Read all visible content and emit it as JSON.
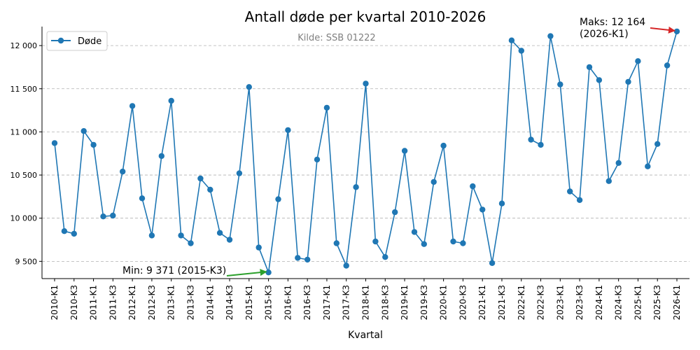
{
  "chart_data": {
    "type": "line",
    "title": "Antall døde per kvartal 2010-2026",
    "subtitle": "Kilde: SSB 01222",
    "xlabel": "Kvartal",
    "ylabel": "",
    "ylim": [
      9300,
      12220
    ],
    "yticks": [
      9500,
      10000,
      10500,
      11000,
      11500,
      12000
    ],
    "ytick_labels": [
      "9 500",
      "10 000",
      "10 500",
      "11 000",
      "11 500",
      "12 000"
    ],
    "grid": "horizontal dashed",
    "legend_position": "top-left",
    "colors": {
      "series": "#1f77b4",
      "min_arrow": "#2ca02c",
      "max_arrow": "#d62728"
    },
    "x_labels_shown": [
      "2010-K1",
      "2010-K3",
      "2011-K1",
      "2011-K3",
      "2012-K1",
      "2012-K3",
      "2013-K1",
      "2013-K3",
      "2014-K1",
      "2014-K3",
      "2015-K1",
      "2015-K3",
      "2016-K1",
      "2016-K3",
      "2017-K1",
      "2017-K3",
      "2018-K1",
      "2018-K3",
      "2019-K1",
      "2019-K3",
      "2020-K1",
      "2020-K3",
      "2021-K1",
      "2021-K3",
      "2022-K1",
      "2022-K3",
      "2023-K1",
      "2023-K3",
      "2024-K1",
      "2024-K3",
      "2025-K1",
      "2025-K3",
      "2026-K1"
    ],
    "series": [
      {
        "name": "Døde",
        "x": [
          "2010-K1",
          "2010-K2",
          "2010-K3",
          "2010-K4",
          "2011-K1",
          "2011-K2",
          "2011-K3",
          "2011-K4",
          "2012-K1",
          "2012-K2",
          "2012-K3",
          "2012-K4",
          "2013-K1",
          "2013-K2",
          "2013-K3",
          "2013-K4",
          "2014-K1",
          "2014-K2",
          "2014-K3",
          "2014-K4",
          "2015-K1",
          "2015-K2",
          "2015-K3",
          "2015-K4",
          "2016-K1",
          "2016-K2",
          "2016-K3",
          "2016-K4",
          "2017-K1",
          "2017-K2",
          "2017-K3",
          "2017-K4",
          "2018-K1",
          "2018-K2",
          "2018-K3",
          "2018-K4",
          "2019-K1",
          "2019-K2",
          "2019-K3",
          "2019-K4",
          "2020-K1",
          "2020-K2",
          "2020-K3",
          "2020-K4",
          "2021-K1",
          "2021-K2",
          "2021-K3",
          "2021-K4",
          "2022-K1",
          "2022-K2",
          "2022-K3",
          "2022-K4",
          "2023-K1",
          "2023-K2",
          "2023-K3",
          "2023-K4",
          "2024-K1",
          "2024-K2",
          "2024-K3",
          "2024-K4",
          "2025-K1",
          "2025-K2",
          "2025-K3",
          "2025-K4",
          "2026-K1"
        ],
        "values": [
          10870,
          9850,
          9820,
          11010,
          10850,
          10020,
          10030,
          10540,
          11300,
          10230,
          9800,
          10720,
          11360,
          9800,
          9710,
          10460,
          10330,
          9830,
          9750,
          10520,
          11520,
          9660,
          9371,
          10220,
          11020,
          9540,
          9520,
          10680,
          11280,
          9710,
          9450,
          10360,
          11560,
          9730,
          9550,
          10070,
          10780,
          9840,
          9700,
          10420,
          10840,
          9730,
          9710,
          10370,
          10100,
          9480,
          10170,
          12060,
          11940,
          10910,
          10850,
          12110,
          11550,
          10310,
          10210,
          11750,
          11600,
          10430,
          10640,
          11580,
          11820,
          10600,
          10860,
          11770,
          12164
        ]
      }
    ],
    "annotations": [
      {
        "text": "Min: 9 371 (2015-K3)",
        "target_x": "2015-K3",
        "target_y": 9371
      },
      {
        "text": "Maks: 12 164",
        "text2": "(2026-K1)",
        "target_x": "2026-K1",
        "target_y": 12164
      }
    ]
  }
}
